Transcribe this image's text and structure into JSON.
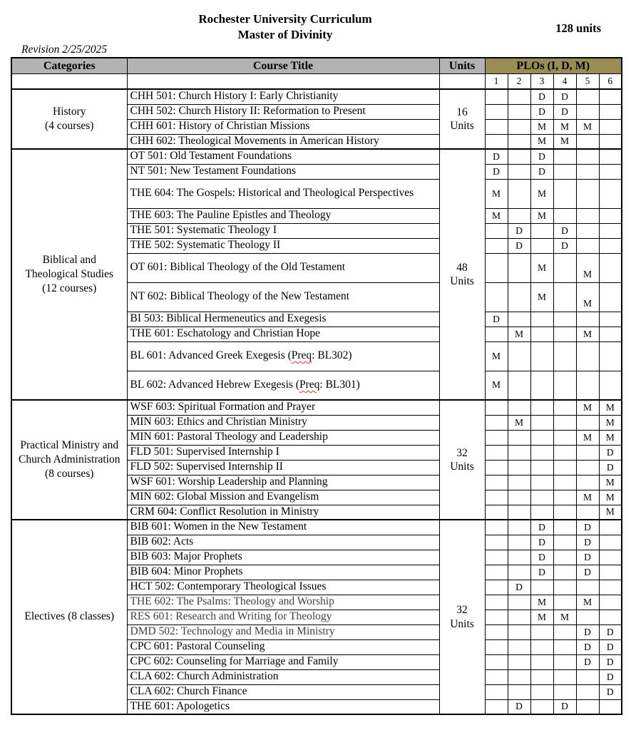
{
  "header": {
    "title_line1": "Rochester University Curriculum",
    "title_line2": "Master of Divinity",
    "total_units": "128 units",
    "revision": "Revision 2/25/2025"
  },
  "colors": {
    "header_gray": "#b3b3b3",
    "plo_olive": "#998d54",
    "muted_text": "#3f3f3f",
    "squiggle_red": "#e03a3a"
  },
  "table": {
    "col_categories": "Categories",
    "col_course_title": "Course Title",
    "col_units": "Units",
    "col_plos": "PLOs (I, D, M)",
    "plo_numbers": [
      "1",
      "2",
      "3",
      "4",
      "5",
      "6"
    ],
    "sections": [
      {
        "category": {
          "name": "History",
          "count": "(4 courses)"
        },
        "units": {
          "value": "16",
          "label": "Units"
        },
        "courses": [
          {
            "title": "CHH 501: Church History I: Early Christianity",
            "plos": {
              "3": "D",
              "4": "D"
            }
          },
          {
            "title": "CHH 502: Church History II: Reformation to Present",
            "plos": {
              "3": "D",
              "4": "D"
            }
          },
          {
            "title": "CHH 601: History of Christian Missions",
            "plos": {
              "3": "M",
              "4": "M",
              "5": "M"
            }
          },
          {
            "title": "CHH 602: Theological Movements in American History",
            "plos": {
              "3": "M",
              "4": "M"
            }
          }
        ]
      },
      {
        "category": {
          "name": "Biblical and Theological Studies",
          "count": "(12 courses)"
        },
        "units": {
          "value": "48",
          "label": "Units"
        },
        "courses": [
          {
            "title": "OT 501: Old Testament Foundations",
            "plos": {
              "1": "D",
              "3": "D"
            }
          },
          {
            "title": "NT 501: New Testament Foundations",
            "plos": {
              "1": "D",
              "3": "D"
            }
          },
          {
            "title": "THE 604: The Gospels: Historical and Theological Perspectives",
            "plos": {
              "1": "M",
              "3": "M"
            },
            "tall": true
          },
          {
            "title": "THE 603: The Pauline Epistles and Theology",
            "plos": {
              "1": "M",
              "3": "M"
            }
          },
          {
            "title": "THE 501: Systematic Theology I",
            "plos": {
              "2": "D",
              "4": "D"
            }
          },
          {
            "title": "THE 502: Systematic Theology II",
            "plos": {
              "2": "D",
              "4": "D"
            }
          },
          {
            "title": "OT 601: Biblical Theology of the Old Testament",
            "plos": {
              "3": "M",
              "5": "M"
            },
            "tall": true,
            "low": [
              "5"
            ]
          },
          {
            "title": "NT 602: Biblical Theology of the New Testament",
            "plos": {
              "3": "M",
              "5": "M"
            },
            "tall": true,
            "low": [
              "5"
            ]
          },
          {
            "title": "BI 503: Biblical Hermeneutics and Exegesis",
            "plos": {
              "1": "D"
            }
          },
          {
            "title": "THE 601: Eschatology and Christian Hope",
            "plos": {
              "2": "M",
              "5": "M"
            }
          },
          {
            "title": "BL 601: Advanced Greek Exegesis (Preq: BL302)",
            "plos": {
              "1": "M"
            },
            "tall": true,
            "squiggle": "Preq"
          },
          {
            "title": "BL 602: Advanced Hebrew Exegesis (Preq: BL301)",
            "plos": {
              "1": "M"
            },
            "tall": true,
            "squiggle": "Preq"
          }
        ]
      },
      {
        "category": {
          "name": "Practical Ministry and Church Administration",
          "count": "(8 courses)"
        },
        "units": {
          "value": "32",
          "label": "Units"
        },
        "courses": [
          {
            "title": "WSF 603: Spiritual Formation and Prayer",
            "plos": {
              "5": "M",
              "6": "M"
            }
          },
          {
            "title": "MIN 603: Ethics and Christian Ministry",
            "plos": {
              "2": "M",
              "6": "M"
            }
          },
          {
            "title": "MIN 601: Pastoral Theology and Leadership",
            "plos": {
              "5": "M",
              "6": "M"
            }
          },
          {
            "title": "FLD 501: Supervised Internship I",
            "plos": {
              "6": "D"
            }
          },
          {
            "title": "FLD 502: Supervised Internship II",
            "plos": {
              "6": "D"
            }
          },
          {
            "title": "WSF 601: Worship Leadership and Planning",
            "plos": {
              "6": "M"
            }
          },
          {
            "title": "MIN 602: Global Mission and Evangelism",
            "plos": {
              "5": "M",
              "6": "M"
            }
          },
          {
            "title": "CRM 604: Conflict Resolution in Ministry",
            "plos": {
              "6": "M"
            }
          }
        ]
      },
      {
        "category": {
          "name": "Electives (8 classes)",
          "count": ""
        },
        "units": {
          "value": "32",
          "label": "Units"
        },
        "courses": [
          {
            "title": "BIB 601: Women in the New Testament",
            "plos": {
              "3": "D",
              "5": "D"
            }
          },
          {
            "title": "BIB 602: Acts",
            "plos": {
              "3": "D",
              "5": "D"
            }
          },
          {
            "title": "BIB 603: Major Prophets",
            "plos": {
              "3": "D",
              "5": "D"
            }
          },
          {
            "title": "BIB 604: Minor Prophets",
            "plos": {
              "3": "D",
              "5": "D"
            }
          },
          {
            "title": "HCT 502: Contemporary Theological Issues",
            "plos": {
              "2": "D"
            }
          },
          {
            "title": "THE 602: The Psalms: Theology and Worship",
            "plos": {
              "3": "M",
              "5": "M"
            },
            "muted": true
          },
          {
            "title": "RES 601: Research and Writing for Theology",
            "plos": {
              "3": "M",
              "4": "M"
            },
            "muted": true
          },
          {
            "title": "DMD 502: Technology and Media in Ministry",
            "plos": {
              "5": "D",
              "6": "D"
            },
            "muted": true
          },
          {
            "title": "CPC 601: Pastoral Counseling",
            "plos": {
              "5": "D",
              "6": "D"
            }
          },
          {
            "title": "CPC 602: Counseling for Marriage and Family",
            "plos": {
              "5": "D",
              "6": "D"
            }
          },
          {
            "title": "CLA 602: Church Administration",
            "plos": {
              "6": "D"
            }
          },
          {
            "title": "CLA 602: Church Finance",
            "plos": {
              "6": "D"
            }
          },
          {
            "title": "THE 601: Apologetics",
            "plos": {
              "2": "D",
              "4": "D"
            }
          }
        ]
      }
    ]
  }
}
